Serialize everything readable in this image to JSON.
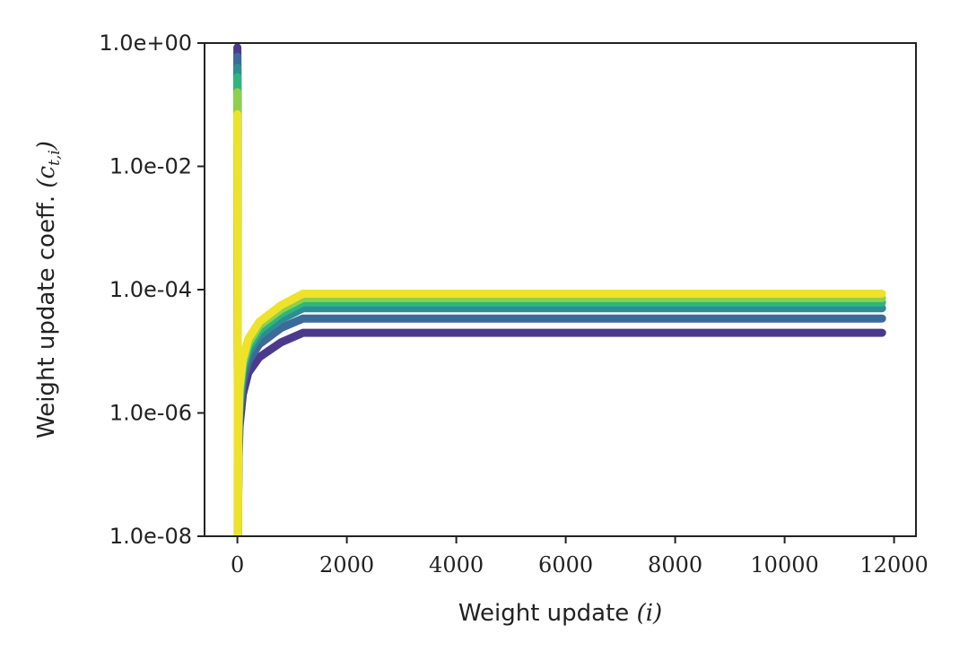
{
  "chart_data": {
    "type": "line",
    "xlabel": "Weight update (i)",
    "ylabel": "Weight update coeff. (c_{t,i})",
    "xlabel_parts": {
      "text": "Weight update ",
      "math": "(i)"
    },
    "ylabel_parts": {
      "text": "Weight update coeff. ",
      "math": "(c",
      "sub": "t,i",
      "close": ")"
    },
    "xlim": [
      -600,
      12400
    ],
    "ylim": [
      1e-08,
      1.0
    ],
    "yscale": "log",
    "xticks": [
      0,
      2000,
      4000,
      6000,
      8000,
      10000,
      12000
    ],
    "xtick_labels": [
      "0",
      "2000",
      "4000",
      "6000",
      "8000",
      "10000",
      "12000"
    ],
    "yticks": [
      1e-08,
      1e-06,
      0.0001,
      0.01,
      1.0
    ],
    "ytick_labels": [
      "1.0e-08",
      "1.0e-06",
      "1.0e-04",
      "1.0e-02",
      "1.0e+00"
    ],
    "grid": false,
    "legend": null,
    "series": [
      {
        "color": "#4b3a8c",
        "x": [
          0,
          10,
          20,
          40,
          100,
          200,
          400,
          800,
          1200,
          11780
        ],
        "y": [
          0.85,
          1e-08,
          1.5e-07,
          6e-07,
          2e-06,
          4.5e-06,
          8e-06,
          1.4e-05,
          2e-05,
          2e-05
        ]
      },
      {
        "color": "#3c6a99",
        "x": [
          0,
          10,
          20,
          40,
          100,
          200,
          400,
          800,
          1200,
          11780
        ],
        "y": [
          0.6,
          1e-08,
          2.5e-07,
          1e-06,
          3.2e-06,
          7e-06,
          1.3e-05,
          2.4e-05,
          3.4e-05,
          3.4e-05
        ]
      },
      {
        "color": "#2a8e94",
        "x": [
          0,
          10,
          20,
          40,
          100,
          200,
          400,
          800,
          1200,
          11780
        ],
        "y": [
          0.4,
          1e-08,
          3.5e-07,
          1.4e-06,
          4.5e-06,
          9.5e-06,
          1.8e-05,
          3.3e-05,
          5e-05,
          5e-05
        ]
      },
      {
        "color": "#2fb57e",
        "x": [
          0,
          10,
          20,
          40,
          100,
          200,
          400,
          800,
          1200,
          11780
        ],
        "y": [
          0.28,
          1e-08,
          4.5e-07,
          1.8e-06,
          5.5e-06,
          1.15e-05,
          2.2e-05,
          4.1e-05,
          6.2e-05,
          6.2e-05
        ]
      },
      {
        "color": "#8ed04a",
        "x": [
          0,
          10,
          20,
          40,
          100,
          200,
          400,
          800,
          1200,
          11780
        ],
        "y": [
          0.16,
          1e-08,
          5.5e-07,
          2.2e-06,
          6.5e-06,
          1.35e-05,
          2.6e-05,
          4.8e-05,
          7.3e-05,
          7.3e-05
        ]
      },
      {
        "color": "#efe22a",
        "x": [
          0,
          10,
          20,
          40,
          100,
          200,
          400,
          800,
          1200,
          11780
        ],
        "y": [
          0.07,
          1e-08,
          6.5e-07,
          2.6e-06,
          7.5e-06,
          1.6e-05,
          3e-05,
          5.6e-05,
          8.6e-05,
          8.6e-05
        ]
      }
    ]
  }
}
